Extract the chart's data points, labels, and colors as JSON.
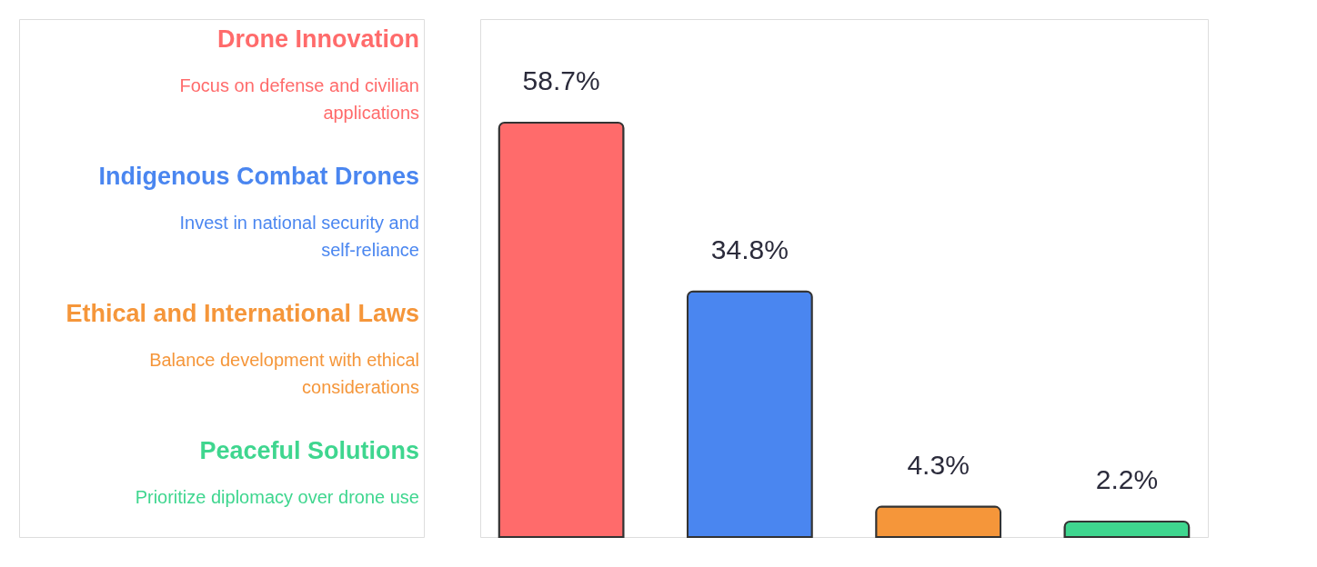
{
  "chart_data": {
    "type": "bar",
    "categories": [
      null,
      null,
      null,
      null
    ],
    "values": [
      58.7,
      34.8,
      4.3,
      2.2
    ],
    "colors": [
      "#ff6b6b",
      "#4a86f0",
      "#f5963a",
      "#3fd68f"
    ],
    "value_labels": [
      "58.7%",
      "34.8%",
      "4.3%",
      "2.2%"
    ],
    "annotations": [
      "Drone Innovation",
      "Focus on defense and civilian\napplications",
      "Indigenous Combat Drones",
      "Invest in national security and\nself-reliance",
      "Ethical and International Laws",
      "Balance development with ethical\nconsiderations",
      "Peaceful Solutions",
      "Prioritize diplomacy over drone use"
    ]
  }
}
